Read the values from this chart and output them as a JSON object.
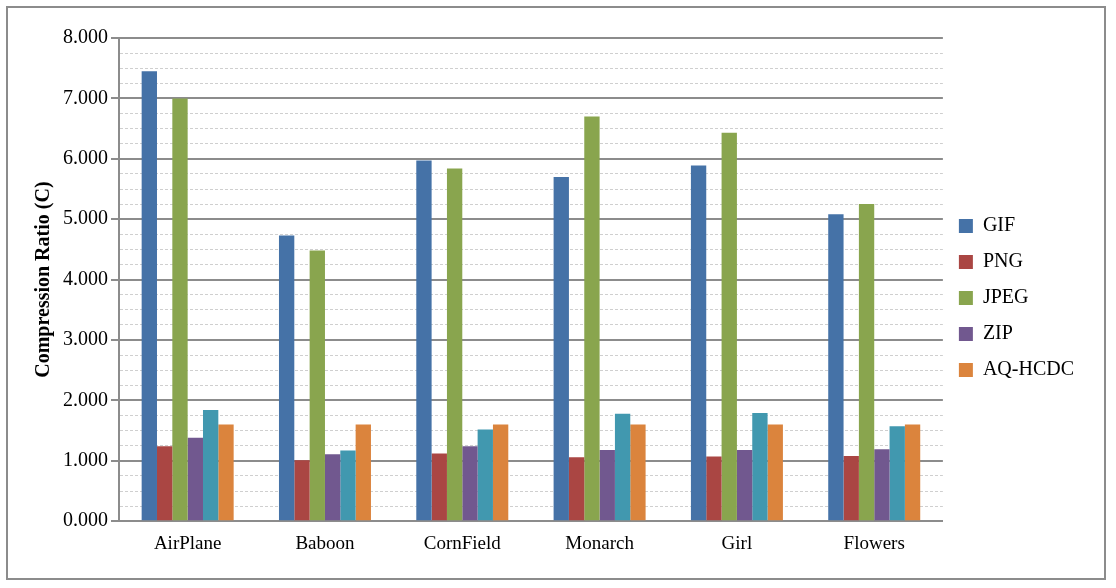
{
  "chart_data": {
    "type": "bar",
    "ylabel": "Compression Ratio (C)",
    "categories": [
      "AirPlane",
      "Baboon",
      "CornField",
      "Monarch",
      "Girl",
      "Flowers"
    ],
    "series": [
      {
        "name": "GIF",
        "color": "#4572a7",
        "values": [
          7.45,
          4.73,
          5.97,
          5.7,
          5.89,
          5.08
        ]
      },
      {
        "name": "PNG",
        "color": "#aa4643",
        "values": [
          1.24,
          1.01,
          1.12,
          1.06,
          1.07,
          1.08
        ]
      },
      {
        "name": "JPEG",
        "color": "#89a54e",
        "values": [
          7.0,
          4.48,
          5.84,
          6.7,
          6.43,
          5.25
        ]
      },
      {
        "name": "ZIP",
        "color": "#71588f",
        "values": [
          1.38,
          1.11,
          1.24,
          1.18,
          1.18,
          1.19
        ]
      },
      {
        "color": "#4198af",
        "values": [
          1.84,
          1.17,
          1.52,
          1.78,
          1.79,
          1.57
        ]
      },
      {
        "name": "AQ-HCDC",
        "color": "#db843d",
        "values": [
          1.6,
          1.6,
          1.6,
          1.6,
          1.6,
          1.6
        ]
      }
    ],
    "ylim": [
      0,
      8
    ],
    "yticks": [
      {
        "value": 0,
        "label": "0.000"
      },
      {
        "value": 0.25,
        "label": null
      },
      {
        "value": 0.5,
        "label": null
      },
      {
        "value": 0.75,
        "label": null
      },
      {
        "value": 1,
        "label": "1.000"
      },
      {
        "value": 1.25,
        "label": null
      },
      {
        "value": 1.5,
        "label": null
      },
      {
        "value": 1.75,
        "label": null
      },
      {
        "value": 2,
        "label": "2.000"
      },
      {
        "value": 2.25,
        "label": null
      },
      {
        "value": 2.5,
        "label": null
      },
      {
        "value": 2.75,
        "label": null
      },
      {
        "value": 3,
        "label": "3.000"
      },
      {
        "value": 3.25,
        "label": null
      },
      {
        "value": 3.5,
        "label": null
      },
      {
        "value": 3.75,
        "label": null
      },
      {
        "value": 4,
        "label": "4.000"
      },
      {
        "value": 4.25,
        "label": null
      },
      {
        "value": 4.5,
        "label": null
      },
      {
        "value": 4.75,
        "label": null
      },
      {
        "value": 5,
        "label": "5.000"
      },
      {
        "value": 5.25,
        "label": null
      },
      {
        "value": 5.5,
        "label": null
      },
      {
        "value": 5.75,
        "label": null
      },
      {
        "value": 6,
        "label": "6.000"
      },
      {
        "value": 6.25,
        "label": null
      },
      {
        "value": 6.5,
        "label": null
      },
      {
        "value": 6.75,
        "label": null
      },
      {
        "value": 7,
        "label": "7.000"
      },
      {
        "value": 7.25,
        "label": null
      },
      {
        "value": 7.5,
        "label": null
      },
      {
        "value": 7.75,
        "label": null
      },
      {
        "value": 8,
        "label": "8.000"
      }
    ],
    "grid": "y",
    "legend": "right"
  }
}
